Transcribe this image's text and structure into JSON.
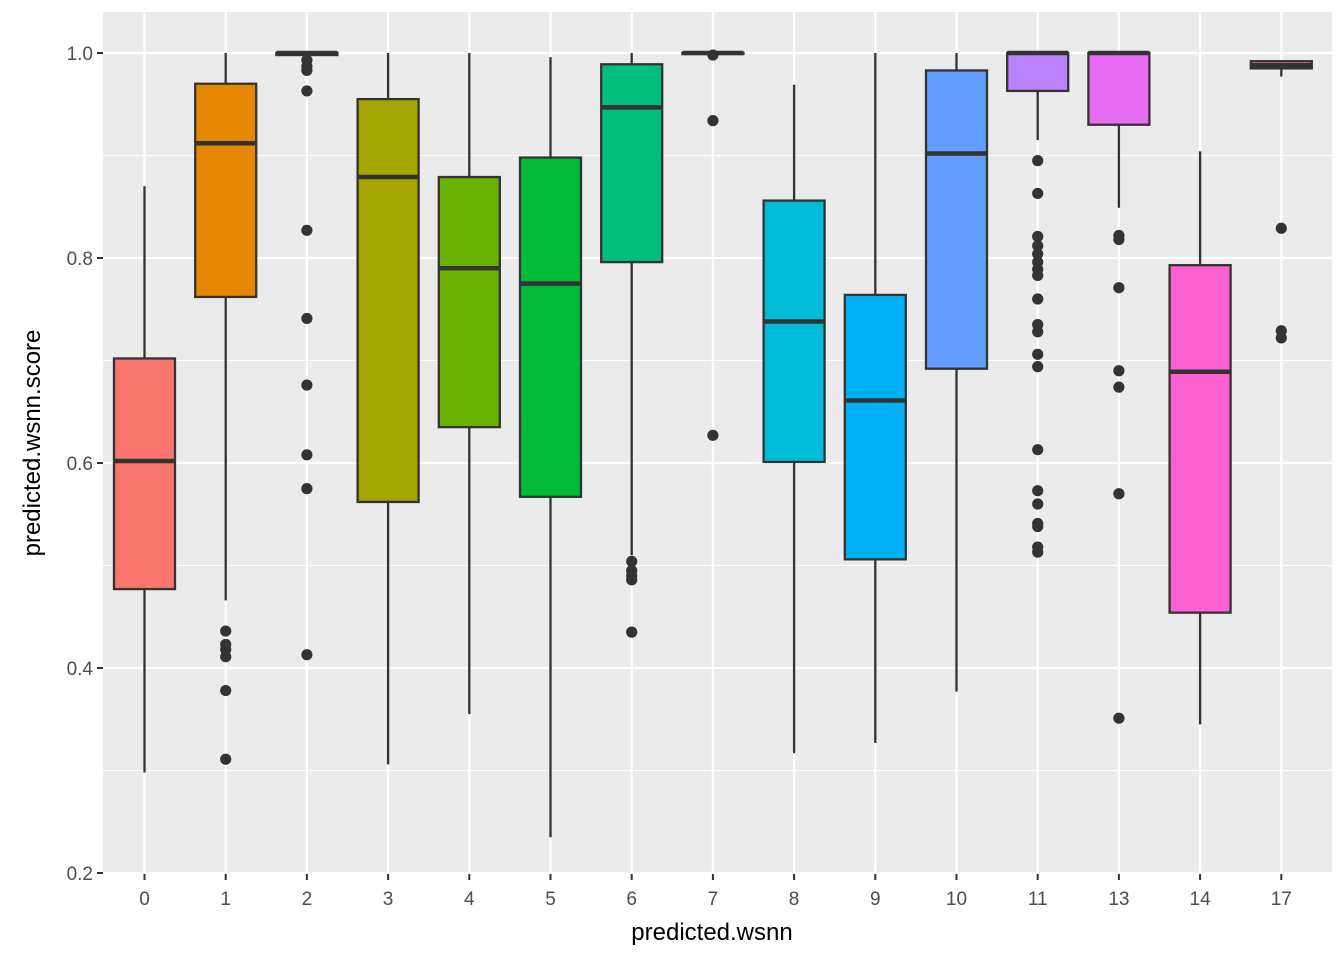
{
  "chart_data": {
    "type": "boxplot",
    "xlabel": "predicted.wsnn",
    "ylabel": "predicted.wsnn.score",
    "ylim": [
      0.2,
      1.0
    ],
    "yticks": [
      0.2,
      0.4,
      0.6,
      0.8,
      1.0
    ],
    "ytick_labels": [
      "0.2",
      "0.4",
      "0.6",
      "0.8",
      "1.0"
    ],
    "categories": [
      "0",
      "1",
      "2",
      "3",
      "4",
      "5",
      "6",
      "7",
      "8",
      "9",
      "10",
      "11",
      "13",
      "14",
      "17"
    ],
    "boxes": [
      {
        "category": "0",
        "color": "#F8766D",
        "q1": 0.477,
        "median": 0.602,
        "q3": 0.702,
        "whisker_low": 0.298,
        "whisker_high": 0.87,
        "outliers": []
      },
      {
        "category": "1",
        "color": "#E58700",
        "q1": 0.762,
        "median": 0.912,
        "q3": 0.97,
        "whisker_low": 0.466,
        "whisker_high": 1.0,
        "outliers": [
          0.436,
          0.423,
          0.418,
          0.411,
          0.378,
          0.311
        ]
      },
      {
        "category": "2",
        "color": "#C99800",
        "q1": 0.998,
        "median": 1.0,
        "q3": 1.0,
        "whisker_low": 0.998,
        "whisker_high": 1.0,
        "outliers": [
          0.993,
          0.987,
          0.983,
          0.963,
          0.827,
          0.741,
          0.676,
          0.608,
          0.575,
          0.413
        ]
      },
      {
        "category": "3",
        "color": "#A3A500",
        "q1": 0.562,
        "median": 0.879,
        "q3": 0.955,
        "whisker_low": 0.306,
        "whisker_high": 1.0,
        "outliers": []
      },
      {
        "category": "4",
        "color": "#6BB100",
        "q1": 0.635,
        "median": 0.79,
        "q3": 0.879,
        "whisker_low": 0.355,
        "whisker_high": 1.0,
        "outliers": []
      },
      {
        "category": "5",
        "color": "#00BA38",
        "q1": 0.567,
        "median": 0.775,
        "q3": 0.898,
        "whisker_low": 0.235,
        "whisker_high": 0.996,
        "outliers": []
      },
      {
        "category": "6",
        "color": "#00BF7D",
        "q1": 0.796,
        "median": 0.947,
        "q3": 0.989,
        "whisker_low": 0.51,
        "whisker_high": 1.0,
        "outliers": [
          0.504,
          0.495,
          0.49,
          0.486,
          0.435
        ]
      },
      {
        "category": "7",
        "color": "#00C0AF",
        "q1": 0.999,
        "median": 1.0,
        "q3": 1.0,
        "whisker_low": 0.999,
        "whisker_high": 1.0,
        "outliers": [
          0.998,
          0.934,
          0.627
        ]
      },
      {
        "category": "8",
        "color": "#00BCD8",
        "q1": 0.601,
        "median": 0.738,
        "q3": 0.856,
        "whisker_low": 0.317,
        "whisker_high": 0.969,
        "outliers": []
      },
      {
        "category": "9",
        "color": "#00B0F6",
        "q1": 0.506,
        "median": 0.661,
        "q3": 0.764,
        "whisker_low": 0.327,
        "whisker_high": 1.0,
        "outliers": []
      },
      {
        "category": "10",
        "color": "#619CFF",
        "q1": 0.692,
        "median": 0.902,
        "q3": 0.983,
        "whisker_low": 0.377,
        "whisker_high": 1.0,
        "outliers": []
      },
      {
        "category": "11",
        "color": "#B983FF",
        "q1": 0.963,
        "median": 1.0,
        "q3": 1.0,
        "whisker_low": 0.915,
        "whisker_high": 1.0,
        "outliers": [
          0.895,
          0.863,
          0.821,
          0.812,
          0.804,
          0.796,
          0.789,
          0.783,
          0.76,
          0.735,
          0.728,
          0.706,
          0.694,
          0.613,
          0.573,
          0.56,
          0.541,
          0.538,
          0.518,
          0.513
        ]
      },
      {
        "category": "13",
        "color": "#E76BF3",
        "q1": 0.93,
        "median": 1.0,
        "q3": 1.0,
        "whisker_low": 0.849,
        "whisker_high": 1.0,
        "outliers": [
          0.822,
          0.818,
          0.771,
          0.69,
          0.674,
          0.57,
          0.351
        ]
      },
      {
        "category": "14",
        "color": "#FD61D1",
        "q1": 0.454,
        "median": 0.689,
        "q3": 0.793,
        "whisker_low": 0.345,
        "whisker_high": 0.904,
        "outliers": []
      },
      {
        "category": "17",
        "color": "#FF67A4",
        "q1": 0.985,
        "median": 0.988,
        "q3": 0.992,
        "whisker_low": 0.977,
        "whisker_high": 0.992,
        "outliers": [
          0.829,
          0.729,
          0.722
        ]
      }
    ]
  }
}
